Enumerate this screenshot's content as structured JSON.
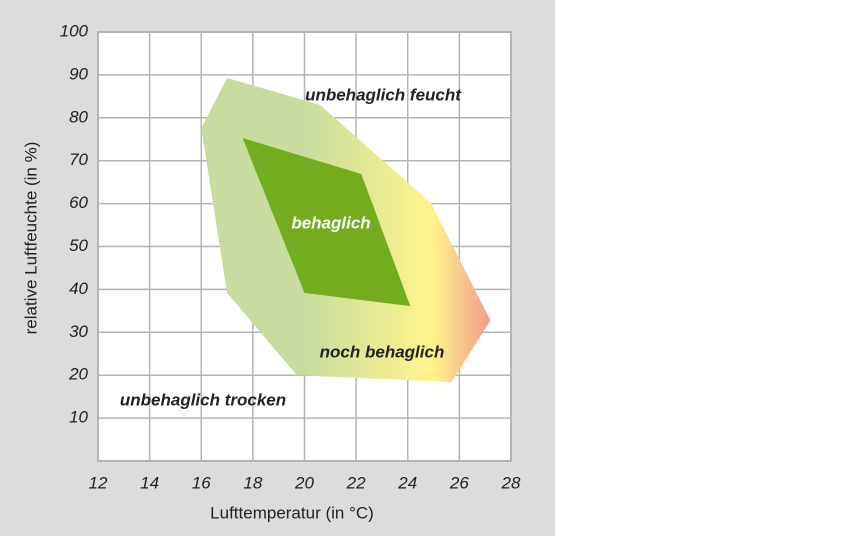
{
  "chart_data": {
    "type": "polygon",
    "xlabel": "Lufttemperatur (in °C)",
    "ylabel": "relative Luftfeuchte (in %)",
    "xlim": [
      12,
      28
    ],
    "xticks": [
      12,
      14,
      16,
      18,
      20,
      22,
      24,
      26,
      28
    ],
    "ylim": [
      0,
      100
    ],
    "yticks": [
      10,
      20,
      30,
      40,
      50,
      60,
      70,
      80,
      90,
      100
    ],
    "grid": true,
    "series": [
      {
        "name": "noch behaglich",
        "colors": [
          "#c7dc9e",
          "#fff48c",
          "#f49a8c"
        ],
        "x": [
          17.0,
          20.6,
          24.9,
          27.2,
          25.7,
          19.7,
          17.0,
          16.0
        ],
        "y": [
          89.3,
          83.0,
          60.1,
          32.8,
          18.4,
          20.0,
          39.2,
          77.6
        ]
      },
      {
        "name": "behaglich",
        "color": "#74ac1f",
        "x": [
          17.6,
          22.2,
          24.1,
          20.0
        ],
        "y": [
          75.3,
          66.9,
          36.1,
          39.2
        ]
      }
    ],
    "annotations": [
      "unbehaglich feucht",
      "unbehaglich trocken"
    ]
  }
}
